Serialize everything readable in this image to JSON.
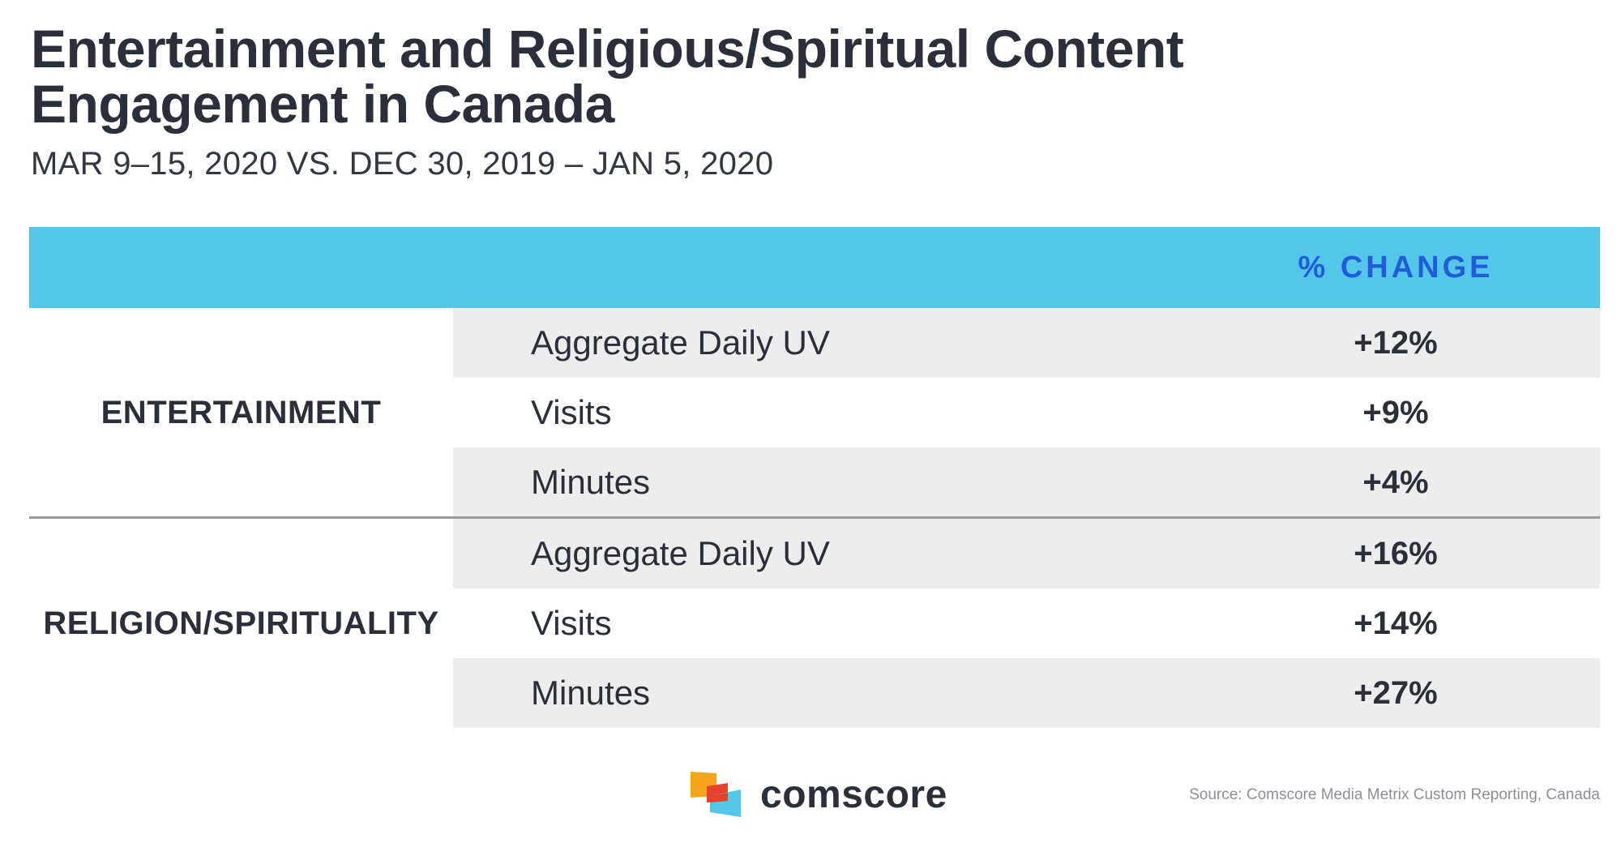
{
  "title_line1": "Entertainment and Religious/Spiritual Content",
  "title_line2": "Engagement in Canada",
  "subtitle": "MAR 9–15, 2020 VS. DEC 30, 2019 – JAN 5, 2020",
  "chart_data": {
    "type": "table",
    "column_header": "% CHANGE",
    "groups": [
      {
        "label": "ENTERTAINMENT",
        "rows": [
          {
            "metric": "Aggregate Daily UV",
            "value": "+12%"
          },
          {
            "metric": "Visits",
            "value": "+9%"
          },
          {
            "metric": "Minutes",
            "value": "+4%"
          }
        ]
      },
      {
        "label": "RELIGION/SPIRITUALITY",
        "rows": [
          {
            "metric": "Aggregate Daily UV",
            "value": "+16%"
          },
          {
            "metric": "Visits",
            "value": "+14%"
          },
          {
            "metric": "Minutes",
            "value": "+27%"
          }
        ]
      }
    ]
  },
  "footer": {
    "logo_text": "comscore",
    "logo_icon": "comscore-logo-icon",
    "source": "Source: Comscore Media Metrix Custom Reporting, Canada"
  },
  "colors": {
    "header_band": "#54c6e9",
    "header_text": "#1f5ed8",
    "row_shade": "#ecedec",
    "text": "#2b2f3a"
  }
}
